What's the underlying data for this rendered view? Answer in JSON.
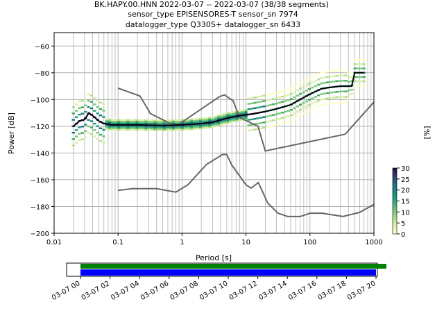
{
  "title_lines": [
    "BK.HAPY.00.HNN   2022-03-07 -- 2022-03-07  (38/38 segments)",
    "sensor_type EPISENSORES-T sensor_sn 7974",
    "datalogger_type Q330S+ datalogger_sn 6433"
  ],
  "chart_data": {
    "type": "heatmap",
    "title": "BK.HAPY.00.HNN   2022-03-07 -- 2022-03-07  (38/38 segments)",
    "xlabel": "Period [s]",
    "ylabel": "Power [dB]",
    "xscale": "log",
    "xlim": [
      0.01,
      1000
    ],
    "ylim": [
      -200,
      -50
    ],
    "xticks": [
      0.01,
      0.1,
      1,
      10,
      100,
      1000
    ],
    "xtick_labels": [
      "0.01",
      "0.1",
      "1",
      "10",
      "100",
      "1000"
    ],
    "yticks": [
      -200,
      -180,
      -160,
      -140,
      -120,
      -100,
      -80,
      -60
    ],
    "ytick_labels": [
      "−200",
      "−180",
      "−160",
      "−140",
      "−120",
      "−100",
      "−80",
      "−60"
    ],
    "grid": true,
    "colorbar": {
      "label": "[%]",
      "range": [
        0,
        30
      ],
      "ticks": [
        0,
        5,
        10,
        15,
        20,
        25,
        30
      ],
      "tick_labels": [
        "0",
        "5",
        "10",
        "15",
        "20",
        "25",
        "30"
      ]
    },
    "mean_curve": {
      "x": [
        0.02,
        0.025,
        0.03,
        0.035,
        0.04,
        0.05,
        0.06,
        0.08,
        0.1,
        0.2,
        0.5,
        1,
        2,
        3,
        5,
        8,
        12,
        20,
        30,
        50,
        70,
        100,
        150,
        200,
        300,
        400,
        450,
        500,
        700
      ],
      "y": [
        -120,
        -116,
        -115,
        -110,
        -112,
        -116,
        -118,
        -119,
        -119,
        -119,
        -119.5,
        -119,
        -118,
        -117,
        -114,
        -112,
        -111,
        -109,
        -107,
        -104,
        -100,
        -96,
        -92,
        -91,
        -90,
        -90,
        -90,
        -80,
        -80
      ]
    },
    "nhnm": {
      "x": [
        0.1,
        0.22,
        0.32,
        0.8,
        3.8,
        4.6,
        6.3,
        7.9,
        15.4,
        20,
        354.8,
        10000
      ],
      "y": [
        -91.5,
        -97.4,
        -110.5,
        -120,
        -98,
        -96.5,
        -101,
        -113.5,
        -120,
        -138.5,
        -126,
        -48.5
      ]
    },
    "nlnm": {
      "x": [
        0.1,
        0.17,
        0.4,
        0.8,
        1.24,
        2.4,
        4.3,
        5,
        6,
        10,
        12,
        15.6,
        21.9,
        31.6,
        45,
        70,
        101,
        154,
        328,
        600,
        10000
      ],
      "y": [
        -168,
        -166.7,
        -166.7,
        -169.2,
        -163.7,
        -148.6,
        -141.1,
        -141.1,
        -149,
        -163.8,
        -166.2,
        -162.1,
        -177.5,
        -185,
        -187.5,
        -187.5,
        -185,
        -185,
        -187.5,
        -184.4,
        -151.5
      ]
    },
    "timeline": {
      "xtick_labels": [
        "03-07 00",
        "03-07 02",
        "03-07 04",
        "03-07 06",
        "03-07 08",
        "03-07 10",
        "03-07 12",
        "03-07 14",
        "03-07 16",
        "03-07 18",
        "03-07 20"
      ],
      "start_hour": 0,
      "data_end_hour": 20.7,
      "psd_end_hour": 20.0,
      "data_color": "#008000",
      "psd_color": "#0000ff"
    }
  }
}
